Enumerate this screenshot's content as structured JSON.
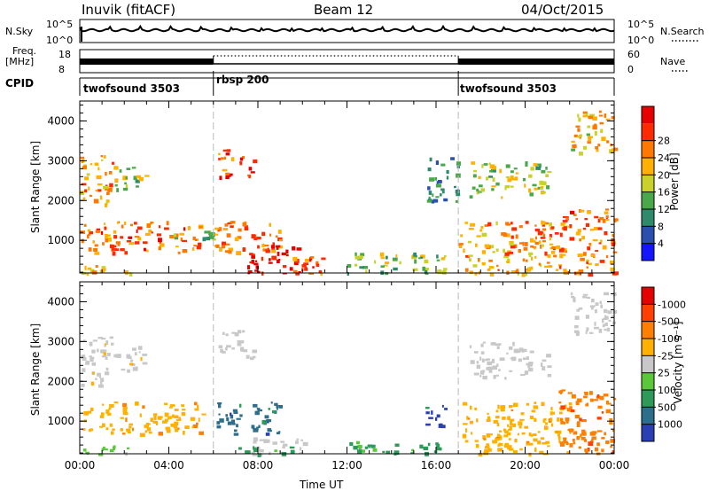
{
  "header": {
    "station": "Inuvik (fitACF)",
    "beam": "Beam 12",
    "date": "04/Oct/2015"
  },
  "top_panels": {
    "nsky_label": "N.Sky",
    "nsky_ticks": [
      "10^5",
      "10^0"
    ],
    "nsearch_label": "N.Search",
    "nsearch_ticks": [
      "10^5",
      "10^0"
    ],
    "freq_label_1": "Freq.",
    "freq_label_2": "[MHz]",
    "freq_ticks": [
      "18",
      "8"
    ],
    "nave_label": "Nave",
    "nave_ticks": [
      "60",
      "0"
    ],
    "cpid_label": "CPID",
    "cpid_segments": [
      {
        "name": "twofsound 3503",
        "start_hour": 0,
        "end_hour": 6
      },
      {
        "name": "rbsp 200",
        "start_hour": 6,
        "end_hour": 17
      },
      {
        "name": "twofsound 3503",
        "start_hour": 17,
        "end_hour": 24
      }
    ]
  },
  "chart_data": [
    {
      "type": "heatmap",
      "title": "",
      "xlabel": "Time UT",
      "ylabel": "Slant Range [km]",
      "xlim": [
        0,
        24
      ],
      "ylim": [
        180,
        4500
      ],
      "x_ticks": [
        "00:00",
        "04:00",
        "08:00",
        "12:00",
        "16:00",
        "20:00",
        "00:00"
      ],
      "y_ticks": [
        1000,
        2000,
        3000,
        4000
      ],
      "colorbar": {
        "label": "Power [dB]",
        "ticks": [
          4,
          8,
          12,
          16,
          20,
          24,
          28
        ],
        "range": [
          0,
          30
        ],
        "colors": [
          "#1414ff",
          "#2a4fae",
          "#2e8a6a",
          "#4aa84a",
          "#c8d22a",
          "#ffb000",
          "#ff7800",
          "#ff2a00",
          "#e60000"
        ]
      },
      "regions": [
        {
          "t0": 0.0,
          "t1": 2.5,
          "r0": 180,
          "r1": 400,
          "value": 18
        },
        {
          "t0": 0.0,
          "t1": 5.5,
          "r0": 700,
          "r1": 1500,
          "value": 22
        },
        {
          "t0": 0.0,
          "t1": 1.5,
          "r0": 1900,
          "r1": 3200,
          "value": 20
        },
        {
          "t0": 1.5,
          "t1": 3.0,
          "r0": 2300,
          "r1": 2900,
          "value": 14
        },
        {
          "t0": 4.0,
          "t1": 6.0,
          "r0": 1000,
          "r1": 1300,
          "value": 10
        },
        {
          "t0": 6.0,
          "t1": 9.0,
          "r0": 700,
          "r1": 1500,
          "value": 22
        },
        {
          "t0": 6.2,
          "t1": 7.8,
          "r0": 2600,
          "r1": 3300,
          "value": 24
        },
        {
          "t0": 7.5,
          "t1": 10.5,
          "r0": 180,
          "r1": 900,
          "value": 28
        },
        {
          "t0": 9.5,
          "t1": 11.0,
          "r0": 180,
          "r1": 600,
          "value": 22
        },
        {
          "t0": 12.0,
          "t1": 16.5,
          "r0": 180,
          "r1": 700,
          "value": 14
        },
        {
          "t0": 15.5,
          "t1": 17.0,
          "r0": 2000,
          "r1": 3100,
          "value": 8
        },
        {
          "t0": 17.0,
          "t1": 22.0,
          "r0": 180,
          "r1": 1500,
          "value": 20
        },
        {
          "t0": 17.5,
          "t1": 21.0,
          "r0": 2100,
          "r1": 3000,
          "value": 14
        },
        {
          "t0": 21.5,
          "t1": 24.0,
          "r0": 180,
          "r1": 1800,
          "value": 22
        },
        {
          "t0": 22.0,
          "t1": 24.0,
          "r0": 3200,
          "r1": 4300,
          "value": 18
        }
      ]
    },
    {
      "type": "heatmap",
      "title": "",
      "xlabel": "Time UT",
      "ylabel": "Slant Range [km]",
      "xlim": [
        0,
        24
      ],
      "ylim": [
        180,
        4500
      ],
      "x_ticks": [
        "00:00",
        "04:00",
        "08:00",
        "12:00",
        "16:00",
        "20:00",
        "00:00"
      ],
      "y_ticks": [
        1000,
        2000,
        3000,
        4000
      ],
      "colorbar": {
        "label": "Velocity [m s⁻¹]",
        "ticks": [
          "1000",
          "500",
          "100",
          "25",
          "-25",
          "-100",
          "-500",
          "-1000"
        ],
        "colors": [
          "#2a3fb4",
          "#2e6e8a",
          "#2e9a5a",
          "#5ac83a",
          "#c8c8c8",
          "#ffb000",
          "#ff8000",
          "#ff4000",
          "#e60000"
        ]
      },
      "regions": [
        {
          "t0": 0.0,
          "t1": 2.5,
          "r0": 180,
          "r1": 400,
          "value": 25
        },
        {
          "t0": 0.0,
          "t1": 5.5,
          "r0": 700,
          "r1": 1500,
          "value": -100
        },
        {
          "t0": 0.0,
          "t1": 1.5,
          "r0": 1900,
          "r1": 3200,
          "value": -25
        },
        {
          "t0": 1.5,
          "t1": 3.0,
          "r0": 2300,
          "r1": 2900,
          "value": -25
        },
        {
          "t0": 6.0,
          "t1": 9.0,
          "r0": 700,
          "r1": 1500,
          "value": 500
        },
        {
          "t0": 6.2,
          "t1": 7.8,
          "r0": 2600,
          "r1": 3300,
          "value": 0
        },
        {
          "t0": 7.5,
          "t1": 10.5,
          "r0": 180,
          "r1": 600,
          "value": 0
        },
        {
          "t0": 7.0,
          "t1": 9.5,
          "r0": 180,
          "r1": 400,
          "value": 100
        },
        {
          "t0": 12.0,
          "t1": 16.5,
          "r0": 180,
          "r1": 500,
          "value": 100
        },
        {
          "t0": 15.5,
          "t1": 16.5,
          "r0": 900,
          "r1": 1500,
          "value": 1000
        },
        {
          "t0": 17.0,
          "t1": 22.0,
          "r0": 180,
          "r1": 1500,
          "value": -100
        },
        {
          "t0": 17.5,
          "t1": 21.0,
          "r0": 2100,
          "r1": 3000,
          "value": 0
        },
        {
          "t0": 21.5,
          "t1": 24.0,
          "r0": 180,
          "r1": 1800,
          "value": -500
        },
        {
          "t0": 22.0,
          "t1": 24.0,
          "r0": 3200,
          "r1": 4300,
          "value": 0
        }
      ]
    }
  ]
}
